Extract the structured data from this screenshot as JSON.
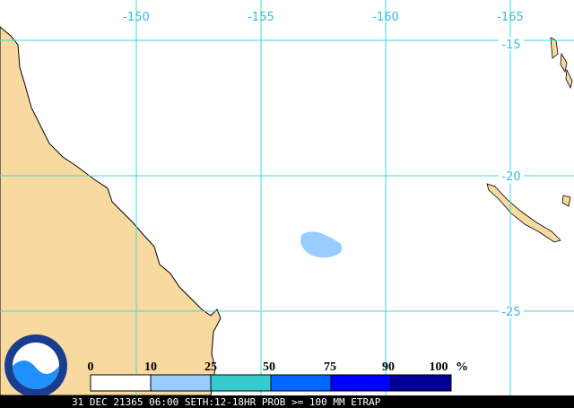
{
  "map": {
    "longitude_labels": [
      "-150",
      "-155",
      "-160",
      "-165"
    ],
    "latitude_labels": [
      "-15",
      "-20",
      "-25"
    ],
    "legend": {
      "labels": [
        "0",
        "10",
        "25",
        "50",
        "75",
        "90",
        "100"
      ],
      "unit": "%"
    },
    "logo": "NOAA",
    "footer": "31 DEC 21365 06:00 SETH:12-18HR PROB >= 100 MM ETRAP"
  }
}
